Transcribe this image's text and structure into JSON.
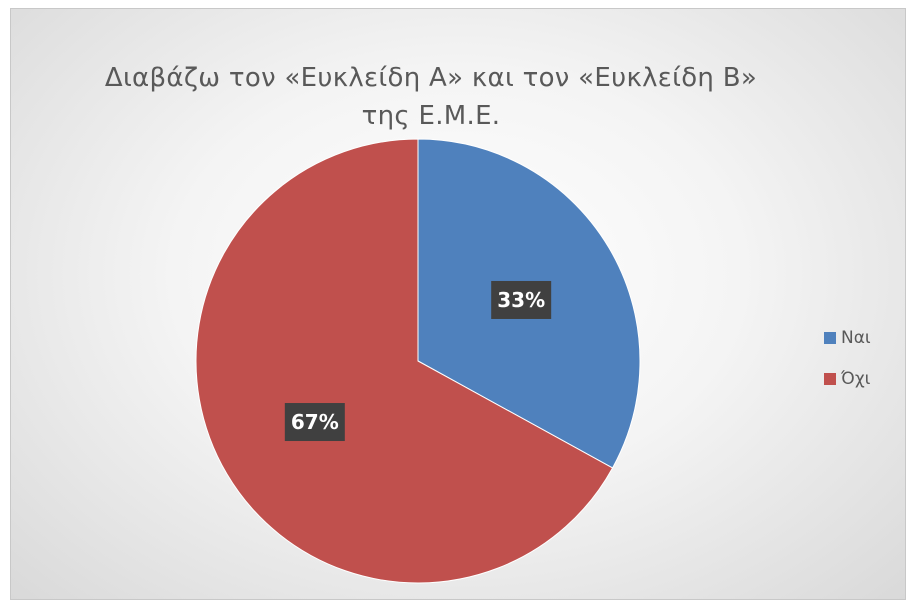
{
  "chart_data": {
    "type": "pie",
    "title": "Διαβάζω τον «Ευκλείδη Α» και τον «Ευκλείδη Β» της Ε.Μ.Ε.",
    "categories": [
      "Ναι",
      "Όχι"
    ],
    "values": [
      33,
      67
    ],
    "data_labels": [
      "33%",
      "67%"
    ],
    "colors": [
      "#4f81bd",
      "#c0504d"
    ],
    "legend_position": "right"
  }
}
